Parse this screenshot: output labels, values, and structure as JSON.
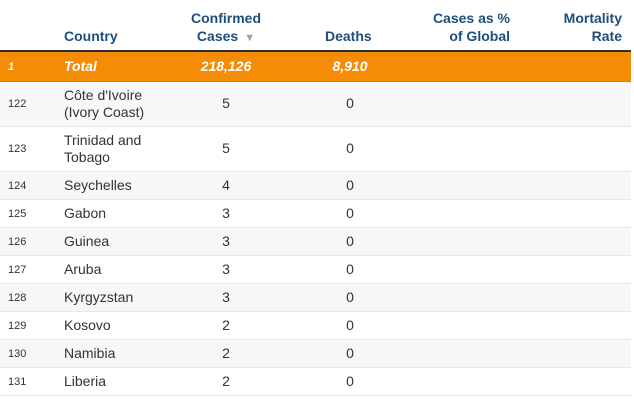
{
  "headers": {
    "country": "Country",
    "confirmed_line1": "Confirmed",
    "confirmed_line2": "Cases",
    "sort_icon": "▼",
    "deaths": "Deaths",
    "cases_pct_line1": "Cases as %",
    "cases_pct_line2": "of Global",
    "mortality_line1": "Mortality",
    "mortality_line2": "Rate"
  },
  "total": {
    "rank": "1",
    "country": "Total",
    "confirmed": "218,126",
    "deaths": "8,910"
  },
  "rows": [
    {
      "rank": "122",
      "country_line1": "Côte d'Ivoire",
      "country_line2": "(Ivory Coast)",
      "confirmed": "5",
      "deaths": "0"
    },
    {
      "rank": "123",
      "country_line1": "Trinidad and",
      "country_line2": "Tobago",
      "confirmed": "5",
      "deaths": "0"
    },
    {
      "rank": "124",
      "country": "Seychelles",
      "confirmed": "4",
      "deaths": "0"
    },
    {
      "rank": "125",
      "country": "Gabon",
      "confirmed": "3",
      "deaths": "0"
    },
    {
      "rank": "126",
      "country": "Guinea",
      "confirmed": "3",
      "deaths": "0"
    },
    {
      "rank": "127",
      "country": "Aruba",
      "confirmed": "3",
      "deaths": "0"
    },
    {
      "rank": "128",
      "country": "Kyrgyzstan",
      "confirmed": "3",
      "deaths": "0"
    },
    {
      "rank": "129",
      "country": "Kosovo",
      "confirmed": "2",
      "deaths": "0"
    },
    {
      "rank": "130",
      "country": "Namibia",
      "confirmed": "2",
      "deaths": "0"
    },
    {
      "rank": "131",
      "country": "Liberia",
      "confirmed": "2",
      "deaths": "0"
    }
  ]
}
